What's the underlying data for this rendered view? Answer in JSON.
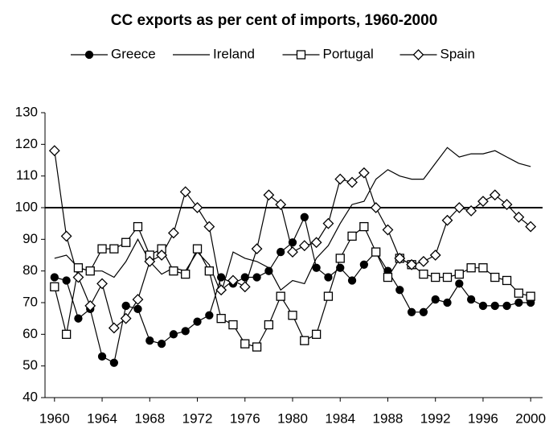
{
  "chart_data": {
    "type": "line",
    "title": "CC exports as per cent of imports, 1960-2000",
    "x": [
      1960,
      1961,
      1962,
      1963,
      1964,
      1965,
      1966,
      1967,
      1968,
      1969,
      1970,
      1971,
      1972,
      1973,
      1974,
      1975,
      1976,
      1977,
      1978,
      1979,
      1980,
      1981,
      1982,
      1983,
      1984,
      1985,
      1986,
      1987,
      1988,
      1989,
      1990,
      1991,
      1992,
      1993,
      1994,
      1995,
      1996,
      1997,
      1998,
      1999,
      2000
    ],
    "xlim": [
      1959,
      2001
    ],
    "xticks": [
      1960,
      1964,
      1968,
      1972,
      1976,
      1980,
      1984,
      1988,
      1992,
      1996,
      2000
    ],
    "ylim": [
      40,
      130
    ],
    "yticks": [
      40,
      50,
      60,
      70,
      80,
      90,
      100,
      110,
      120,
      130
    ],
    "reference_line": 100,
    "legend": "top",
    "series": [
      {
        "name": "Greece",
        "color": "#000000",
        "marker": "circle-filled",
        "values": [
          78,
          77,
          65,
          68,
          53,
          51,
          69,
          68,
          58,
          57,
          60,
          61,
          64,
          66,
          78,
          76,
          78,
          78,
          80,
          86,
          89,
          97,
          81,
          78,
          81,
          77,
          82,
          86,
          80,
          74,
          67,
          67,
          71,
          70,
          76,
          71,
          69,
          69,
          69,
          70,
          70
        ]
      },
      {
        "name": "Ireland",
        "color": "#000000",
        "marker": "none",
        "values": [
          84,
          85,
          81,
          80,
          80,
          78,
          83,
          90,
          83,
          79,
          81,
          80,
          86,
          82,
          73,
          86,
          84,
          83,
          81,
          74,
          77,
          76,
          84,
          88,
          95,
          101,
          102,
          109,
          112,
          110,
          109,
          109,
          114,
          119,
          116,
          117,
          117,
          118,
          116,
          114,
          113
        ]
      },
      {
        "name": "Portugal",
        "color": "#000000",
        "marker": "square",
        "values": [
          75,
          60,
          81,
          80,
          87,
          87,
          89,
          94,
          85,
          87,
          80,
          79,
          87,
          80,
          65,
          63,
          57,
          56,
          63,
          72,
          66,
          58,
          60,
          72,
          84,
          91,
          94,
          86,
          78,
          84,
          82,
          79,
          78,
          78,
          79,
          81,
          81,
          78,
          77,
          73,
          72
        ]
      },
      {
        "name": "Spain",
        "color": "#000000",
        "marker": "diamond",
        "values": [
          118,
          91,
          78,
          69,
          76,
          62,
          65,
          71,
          83,
          85,
          92,
          105,
          100,
          94,
          74,
          77,
          75,
          87,
          104,
          101,
          86,
          88,
          89,
          95,
          109,
          108,
          111,
          100,
          93,
          84,
          82,
          83,
          85,
          96,
          100,
          99,
          102,
          104,
          101,
          97,
          94
        ]
      }
    ]
  }
}
